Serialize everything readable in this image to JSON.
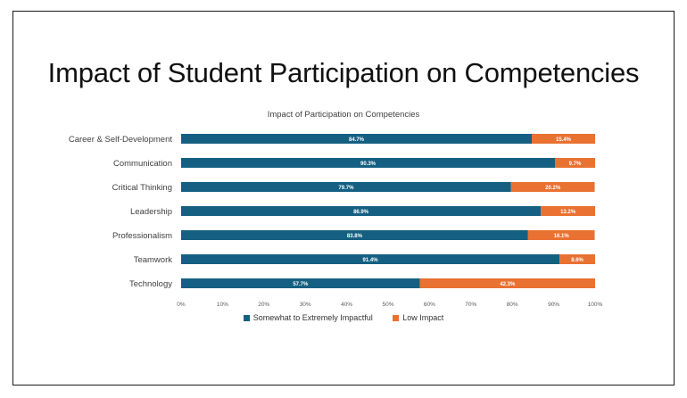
{
  "slide": {
    "title": "Impact of Student Participation on Competencies"
  },
  "chart_data": {
    "type": "bar",
    "orientation": "horizontal",
    "stacked": true,
    "title": "Impact of Participation on Competencies",
    "categories": [
      "Career & Self-Development",
      "Communication",
      "Critical Thinking",
      "Leadership",
      "Professionalism",
      "Teamwork",
      "Technology"
    ],
    "series": [
      {
        "name": "Somewhat to Extremely Impactful",
        "color": "#156082",
        "values": [
          84.7,
          90.3,
          79.7,
          86.9,
          83.8,
          91.4,
          57.7
        ],
        "labels": [
          "84.7%",
          "90.3%",
          "79.7%",
          "86.9%",
          "83.8%",
          "91.4%",
          "57.7%"
        ]
      },
      {
        "name": "Low Impact",
        "color": "#E97132",
        "values": [
          15.4,
          9.7,
          20.2,
          13.2,
          16.1,
          8.6,
          42.3
        ],
        "labels": [
          "15.4%",
          "9.7%",
          "20.2%",
          "13.2%",
          "16.1%",
          "8.6%",
          "42.3%"
        ]
      }
    ],
    "xlim": [
      0,
      100
    ],
    "xticks": [
      "0%",
      "10%",
      "20%",
      "30%",
      "40%",
      "50%",
      "60%",
      "70%",
      "80%",
      "90%",
      "100%"
    ],
    "xlabel": "",
    "ylabel": "",
    "legend": "bottom",
    "grid": false
  }
}
